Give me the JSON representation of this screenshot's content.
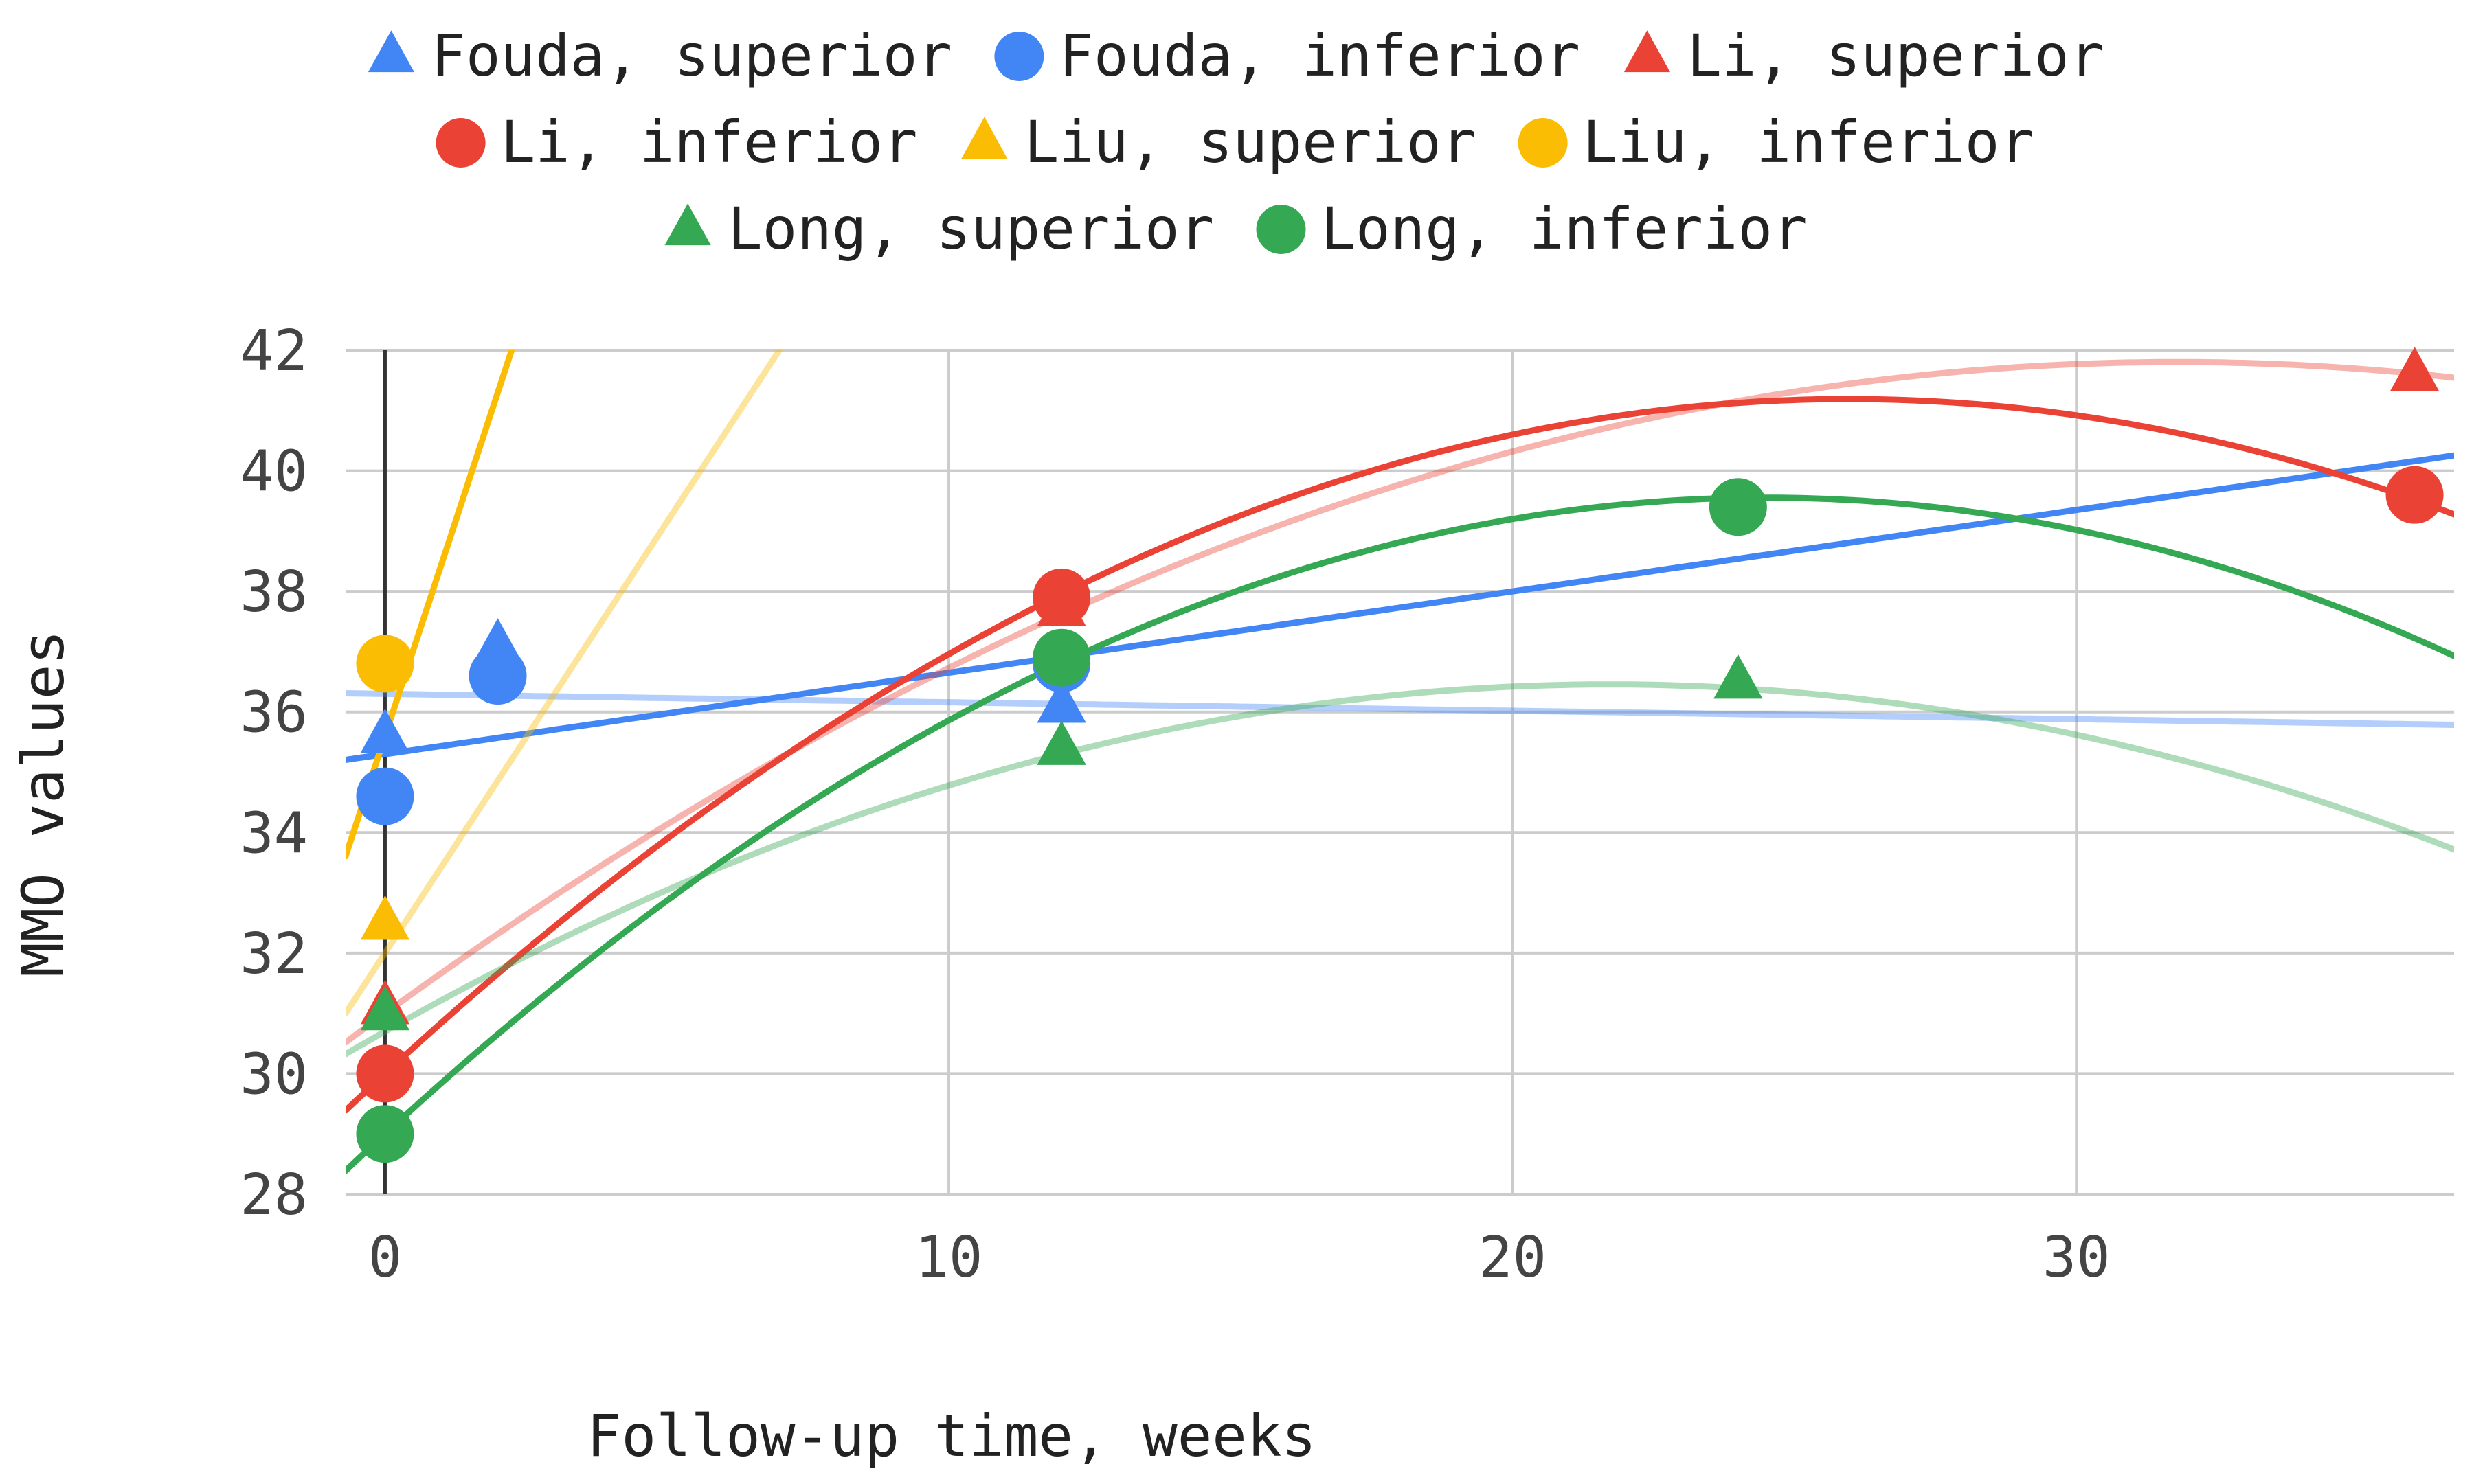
{
  "chart_data": {
    "type": "scatter",
    "title": "",
    "xlabel": "Follow-up time, weeks",
    "ylabel": "MMO values",
    "xlim": [
      -0.7,
      36.7
    ],
    "ylim": [
      28,
      42
    ],
    "x_ticks": [
      0,
      10,
      20,
      30
    ],
    "y_ticks": [
      28,
      30,
      32,
      34,
      36,
      38,
      40,
      42
    ],
    "grid": true,
    "legend_position": "top",
    "series": [
      {
        "name": "Fouda, superior",
        "marker": "triangle",
        "color": "#4285F4",
        "points": [
          {
            "x": 0,
            "y": 35.6
          },
          {
            "x": 2,
            "y": 37.1
          },
          {
            "x": 12,
            "y": 36.1
          }
        ],
        "trend": {
          "type": "linear",
          "coef": [
            36.3,
            -0.014
          ],
          "opacity": 0.4
        }
      },
      {
        "name": "Fouda, inferior",
        "marker": "circle",
        "color": "#4285F4",
        "points": [
          {
            "x": 0,
            "y": 34.6
          },
          {
            "x": 2,
            "y": 36.6
          },
          {
            "x": 12,
            "y": 36.8
          }
        ],
        "trend": {
          "type": "linear",
          "coef": [
            35.3,
            0.135
          ],
          "opacity": 1.0
        }
      },
      {
        "name": "Li, superior",
        "marker": "triangle",
        "color": "#EA4335",
        "points": [
          {
            "x": 0,
            "y": 31.1
          },
          {
            "x": 12,
            "y": 37.7
          },
          {
            "x": 36,
            "y": 41.6
          }
        ],
        "trend": {
          "type": "quadratic",
          "coef": [
            31.0,
            0.68,
            -0.0107
          ],
          "opacity": 0.4
        }
      },
      {
        "name": "Li, inferior",
        "marker": "circle",
        "color": "#EA4335",
        "points": [
          {
            "x": 0,
            "y": 30.0
          },
          {
            "x": 12,
            "y": 37.9
          },
          {
            "x": 36,
            "y": 39.6
          }
        ],
        "trend": {
          "type": "quadratic",
          "coef": [
            30.0,
            0.862,
            -0.0166
          ],
          "opacity": 1.0
        }
      },
      {
        "name": "Liu, superior",
        "marker": "triangle",
        "color": "#FBBC04",
        "points": [
          {
            "x": 0,
            "y": 32.5
          }
        ],
        "trend": {
          "type": "linear",
          "coef": [
            32.0,
            1.43
          ],
          "opacity": 0.4
        }
      },
      {
        "name": "Liu, inferior",
        "marker": "circle",
        "color": "#FBBC04",
        "points": [
          {
            "x": 0,
            "y": 36.8
          }
        ],
        "trend": {
          "type": "linear",
          "coef": [
            35.6,
            2.85
          ],
          "opacity": 1.0
        }
      },
      {
        "name": "Long, superior",
        "marker": "triangle",
        "color": "#34A853",
        "points": [
          {
            "x": 0,
            "y": 31.0
          },
          {
            "x": 12,
            "y": 35.4
          },
          {
            "x": 24,
            "y": 36.5
          }
        ],
        "trend": {
          "type": "quadratic",
          "coef": [
            30.7,
            0.53,
            -0.0122
          ],
          "opacity": 0.4
        }
      },
      {
        "name": "Long, inferior",
        "marker": "circle",
        "color": "#34A853",
        "points": [
          {
            "x": 0,
            "y": 29.0
          },
          {
            "x": 12,
            "y": 36.9
          },
          {
            "x": 24,
            "y": 39.4
          }
        ],
        "trend": {
          "type": "quadratic",
          "coef": [
            29.0,
            0.862,
            -0.0176
          ],
          "opacity": 1.0
        }
      }
    ]
  }
}
